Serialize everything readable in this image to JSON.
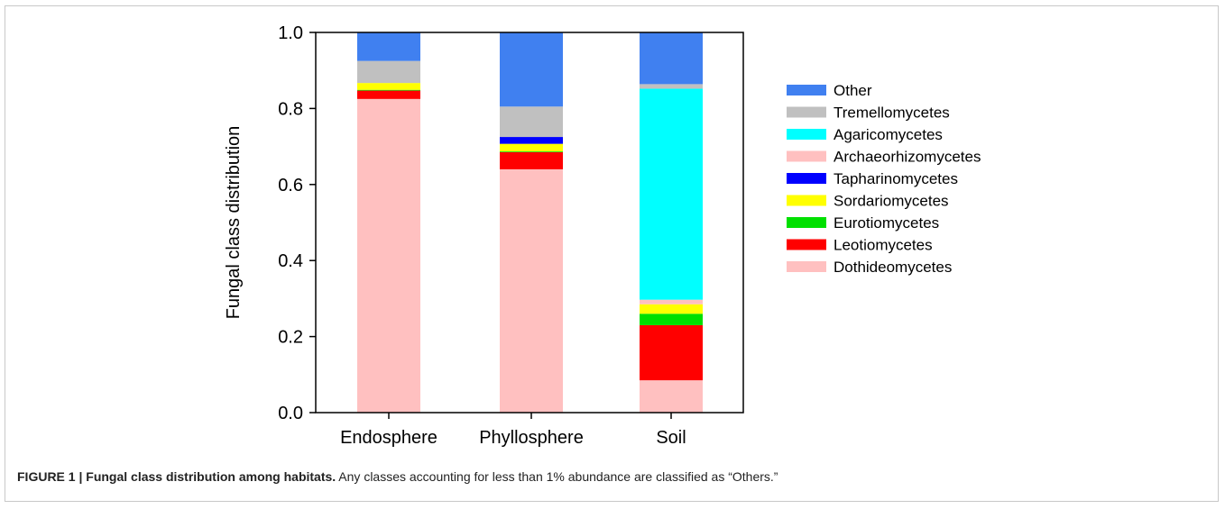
{
  "chart_data": {
    "type": "bar",
    "stacked": true,
    "categories": [
      "Endosphere",
      "Phyllosphere",
      "Soil"
    ],
    "ylabel": "Fungal class distribution",
    "xlabel": "",
    "ylim": [
      0,
      1
    ],
    "yticks": [
      "0.0",
      "0.2",
      "0.4",
      "0.6",
      "0.8",
      "1.0"
    ],
    "ytick_values": [
      0,
      0.2,
      0.4,
      0.6,
      0.8,
      1.0
    ],
    "grid": false,
    "legend_position": "right",
    "series": [
      {
        "name": "Dothideomycetes",
        "color": "#ffc0c0",
        "values": [
          0.825,
          0.64,
          0.085
        ]
      },
      {
        "name": "Leotiomycetes",
        "color": "#ff0000",
        "values": [
          0.022,
          0.045,
          0.145
        ]
      },
      {
        "name": "Eurotiomycetes",
        "color": "#00e000",
        "values": [
          0.002,
          0.002,
          0.03
        ]
      },
      {
        "name": "Sordariomycetes",
        "color": "#ffff00",
        "values": [
          0.018,
          0.02,
          0.025
        ]
      },
      {
        "name": "Tapharinomycetes",
        "color": "#0000ff",
        "values": [
          0.0,
          0.018,
          0.0
        ]
      },
      {
        "name": "Archaeorhizomycetes",
        "color": "#ffc0c0",
        "values": [
          0.0,
          0.0,
          0.012
        ]
      },
      {
        "name": "Agaricomycetes",
        "color": "#00ffff",
        "values": [
          0.0,
          0.0,
          0.555
        ]
      },
      {
        "name": "Tremellomycetes",
        "color": "#c0c0c0",
        "values": [
          0.058,
          0.08,
          0.012
        ]
      },
      {
        "name": "Other",
        "color": "#4080f0",
        "values": [
          0.075,
          0.195,
          0.136
        ]
      }
    ]
  },
  "caption": {
    "label": "FIGURE 1 | Fungal class distribution among habitats.",
    "text": " Any classes accounting for less than 1% abundance are classified as “Others.”"
  }
}
